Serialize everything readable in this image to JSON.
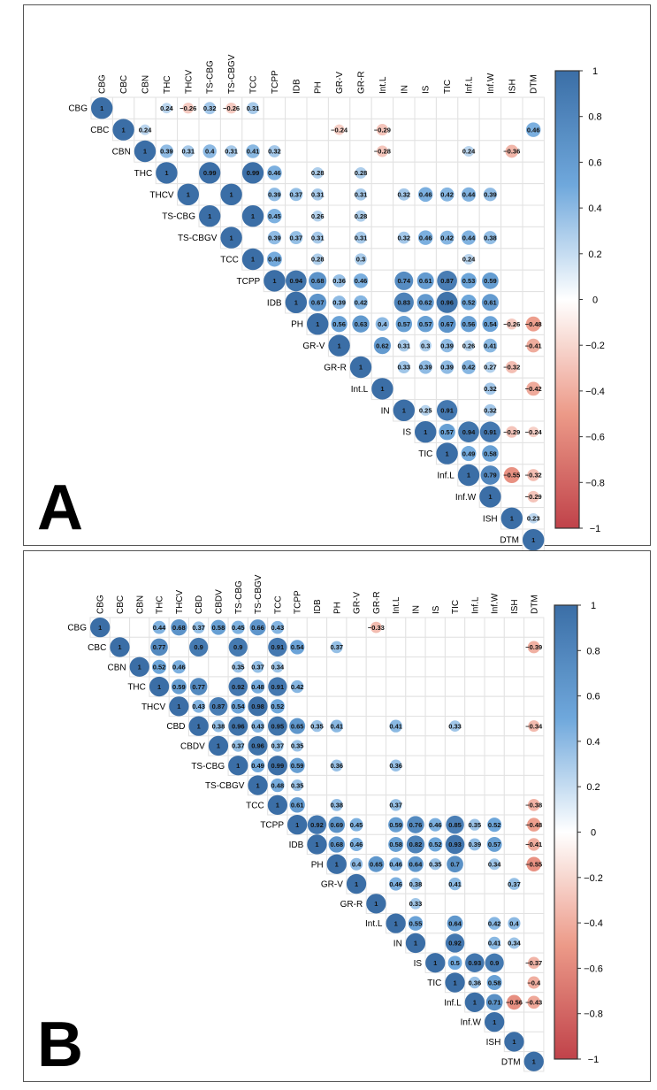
{
  "colors": {
    "pos1": "#3b6ea6",
    "pos05": "#6fa8dc",
    "zero": "#ffffff",
    "neg05": "#ec9a88",
    "neg1": "#c0424a"
  },
  "chart_data": [
    {
      "type": "heatmap",
      "panel_label": "A",
      "legend": {
        "placement": "right",
        "range": [
          -1,
          1
        ],
        "ticks": [
          "1",
          "0.8",
          "0.6",
          "0.4",
          "0.2",
          "0",
          "-0.2",
          "-0.4",
          "-0.6",
          "-0.8",
          "-1"
        ]
      },
      "labels": [
        "CBG",
        "CBC",
        "CBN",
        "THC",
        "THCV",
        "TS-CBG",
        "TS-CBGV",
        "TCC",
        "TCPP",
        "IDB",
        "PH",
        "GR-V",
        "GR-R",
        "Int.L",
        "IN",
        "IS",
        "TIC",
        "Inf.L",
        "Inf.W",
        "ISH",
        "DTM"
      ],
      "values": {
        "CBG": {
          "CBG": 1,
          "THC": 0.24,
          "THCV": -0.26,
          "TS-CBG": 0.32,
          "TS-CBGV": -0.26,
          "TCC": 0.31
        },
        "CBC": {
          "CBC": 1,
          "CBN": 0.24,
          "GR-V": -0.24,
          "Int.L": -0.29,
          "DTM": 0.46
        },
        "CBN": {
          "CBN": 1,
          "THC": 0.39,
          "THCV": 0.31,
          "TS-CBG": 0.4,
          "TS-CBGV": 0.31,
          "TCC": 0.41,
          "TCPP": 0.32,
          "Int.L": -0.28,
          "Inf.L": 0.24,
          "ISH": -0.36
        },
        "THC": {
          "THC": 1,
          "TS-CBG": 0.99,
          "TCC": 0.99,
          "TCPP": 0.46,
          "PH": 0.28,
          "GR-R": 0.28
        },
        "THCV": {
          "THCV": 1,
          "TS-CBGV": 1,
          "TCPP": 0.39,
          "IDB": 0.37,
          "PH": 0.31,
          "GR-R": 0.31,
          "IN": 0.32,
          "IS": 0.46,
          "TIC": 0.42,
          "Inf.L": 0.44,
          "Inf.W": 0.39
        },
        "TS-CBG": {
          "TS-CBG": 1,
          "TCC": 1,
          "TCPP": 0.45,
          "PH": 0.26,
          "GR-R": 0.28
        },
        "TS-CBGV": {
          "TS-CBGV": 1,
          "TCPP": 0.39,
          "IDB": 0.37,
          "PH": 0.31,
          "GR-R": 0.31,
          "IN": 0.32,
          "IS": 0.46,
          "TIC": 0.42,
          "Inf.L": 0.44,
          "Inf.W": 0.38
        },
        "TCC": {
          "TCC": 1,
          "TCPP": 0.48,
          "PH": 0.28,
          "GR-R": 0.3,
          "Inf.L": 0.24
        },
        "TCPP": {
          "TCPP": 1,
          "IDB": 0.94,
          "PH": 0.68,
          "GR-V": 0.36,
          "GR-R": 0.46,
          "IN": 0.74,
          "IS": 0.61,
          "TIC": 0.87,
          "Inf.L": 0.53,
          "Inf.W": 0.59
        },
        "IDB": {
          "IDB": 1,
          "PH": 0.67,
          "GR-V": 0.39,
          "GR-R": 0.42,
          "IN": 0.83,
          "IS": 0.62,
          "TIC": 0.96,
          "Inf.L": 0.52,
          "Inf.W": 0.61
        },
        "PH": {
          "PH": 1,
          "GR-V": 0.56,
          "GR-R": 0.63,
          "Int.L": 0.4,
          "IN": 0.57,
          "IS": 0.57,
          "TIC": 0.67,
          "Inf.L": 0.56,
          "Inf.W": 0.54,
          "ISH": -0.26,
          "DTM": -0.48
        },
        "GR-V": {
          "GR-V": 1,
          "Int.L": 0.62,
          "IN": 0.31,
          "IS": 0.3,
          "TIC": 0.39,
          "Inf.L": 0.26,
          "Inf.W": 0.41,
          "DTM": -0.41
        },
        "GR-R": {
          "GR-R": 1,
          "IN": 0.33,
          "IS": 0.39,
          "TIC": 0.39,
          "Inf.L": 0.42,
          "Inf.W": 0.27,
          "ISH": -0.32
        },
        "Int.L": {
          "Int.L": 1,
          "Inf.W": 0.32,
          "DTM": -0.42
        },
        "IN": {
          "IN": 1,
          "IS": 0.25,
          "TIC": 0.91,
          "Inf.W": 0.32
        },
        "IS": {
          "IS": 1,
          "TIC": 0.57,
          "Inf.L": 0.94,
          "Inf.W": 0.91,
          "ISH": -0.29,
          "DTM": -0.24
        },
        "TIC": {
          "TIC": 1,
          "Inf.L": 0.49,
          "Inf.W": 0.58
        },
        "Inf.L": {
          "Inf.L": 1,
          "Inf.W": 0.79,
          "ISH": -0.55,
          "DTM": -0.32
        },
        "Inf.W": {
          "Inf.W": 1,
          "DTM": -0.29
        },
        "ISH": {
          "ISH": 1,
          "DTM": 0.23
        },
        "DTM": {
          "DTM": 1
        }
      }
    },
    {
      "type": "heatmap",
      "panel_label": "B",
      "legend": {
        "placement": "right",
        "range": [
          -1,
          1
        ],
        "ticks": [
          "1",
          "0.8",
          "0.6",
          "0.4",
          "0.2",
          "0",
          "-0.2",
          "-0.4",
          "-0.6",
          "-0.8",
          "-1"
        ]
      },
      "labels": [
        "CBG",
        "CBC",
        "CBN",
        "THC",
        "THCV",
        "CBD",
        "CBDV",
        "TS-CBG",
        "TS-CBGV",
        "TCC",
        "TCPP",
        "IDB",
        "PH",
        "GR-V",
        "GR-R",
        "Int.L",
        "IN",
        "IS",
        "TIC",
        "Inf.L",
        "Inf.W",
        "ISH",
        "DTM"
      ],
      "values": {
        "CBG": {
          "CBG": 1,
          "THC": 0.44,
          "THCV": 0.68,
          "CBD": 0.37,
          "CBDV": 0.58,
          "TS-CBG": 0.45,
          "TS-CBGV": 0.66,
          "TCC": 0.43,
          "GR-R": -0.33
        },
        "CBC": {
          "CBC": 1,
          "THC": 0.77,
          "CBD": 0.9,
          "TS-CBG": 0.9,
          "TCC": 0.91,
          "TCPP": 0.54,
          "PH": 0.37,
          "DTM": -0.39
        },
        "CBN": {
          "CBN": 1,
          "THC": 0.52,
          "THCV": 0.46,
          "TS-CBG": 0.35,
          "TS-CBGV": 0.37,
          "TCC": 0.34
        },
        "THC": {
          "THC": 1,
          "THCV": 0.59,
          "CBD": 0.77,
          "TS-CBG": 0.92,
          "TS-CBGV": 0.48,
          "TCC": 0.91,
          "TCPP": 0.42
        },
        "THCV": {
          "THCV": 1,
          "CBD": 0.43,
          "CBDV": 0.87,
          "TS-CBG": 0.54,
          "TS-CBGV": 0.98,
          "TCC": 0.52
        },
        "CBD": {
          "CBD": 1,
          "CBDV": 0.38,
          "TS-CBG": 0.96,
          "TS-CBGV": 0.43,
          "TCC": 0.95,
          "TCPP": 0.65,
          "IDB": 0.35,
          "PH": 0.41,
          "Int.L": 0.41,
          "TIC": 0.33,
          "DTM": -0.34
        },
        "CBDV": {
          "CBDV": 1,
          "TS-CBG": 0.37,
          "TS-CBGV": 0.96,
          "TCC": 0.37,
          "TCPP": 0.35
        },
        "TS-CBG": {
          "TS-CBG": 1,
          "TS-CBGV": 0.49,
          "TCC": 0.99,
          "TCPP": 0.59,
          "PH": 0.36,
          "Int.L": 0.36
        },
        "TS-CBGV": {
          "TS-CBGV": 1,
          "TCC": 0.48,
          "TCPP": 0.35
        },
        "TCC": {
          "TCC": 1,
          "TCPP": 0.61,
          "PH": 0.38,
          "Int.L": 0.37,
          "DTM": -0.38
        },
        "TCPP": {
          "TCPP": 1,
          "IDB": 0.92,
          "PH": 0.69,
          "GR-V": 0.45,
          "Int.L": 0.59,
          "IN": 0.76,
          "IS": 0.46,
          "TIC": 0.85,
          "Inf.L": 0.35,
          "Inf.W": 0.52,
          "DTM": -0.48
        },
        "IDB": {
          "IDB": 1,
          "PH": 0.68,
          "GR-V": 0.46,
          "Int.L": 0.58,
          "IN": 0.82,
          "IS": 0.52,
          "TIC": 0.93,
          "Inf.L": 0.39,
          "Inf.W": 0.57,
          "DTM": -0.41
        },
        "PH": {
          "PH": 1,
          "GR-V": 0.4,
          "GR-R": 0.65,
          "Int.L": 0.46,
          "IN": 0.64,
          "IS": 0.35,
          "TIC": 0.7,
          "Inf.W": 0.34,
          "DTM": -0.55
        },
        "GR-V": {
          "GR-V": 1,
          "Int.L": 0.46,
          "IN": 0.38,
          "TIC": 0.41,
          "ISH": 0.37
        },
        "GR-R": {
          "GR-R": 1,
          "IN": 0.33
        },
        "Int.L": {
          "Int.L": 1,
          "IN": 0.55,
          "TIC": 0.64,
          "Inf.W": 0.42,
          "ISH": 0.4
        },
        "IN": {
          "IN": 1,
          "TIC": 0.92,
          "Inf.W": 0.41,
          "ISH": 0.34
        },
        "IS": {
          "IS": 1,
          "TIC": 0.5,
          "Inf.L": 0.93,
          "Inf.W": 0.9,
          "DTM": -0.37
        },
        "TIC": {
          "TIC": 1,
          "Inf.L": 0.36,
          "Inf.W": 0.58,
          "DTM": -0.4
        },
        "Inf.L": {
          "Inf.L": 1,
          "Inf.W": 0.71,
          "ISH": -0.56,
          "DTM": -0.43
        },
        "Inf.W": {
          "Inf.W": 1
        },
        "ISH": {
          "ISH": 1
        },
        "DTM": {
          "DTM": 1
        }
      }
    }
  ]
}
